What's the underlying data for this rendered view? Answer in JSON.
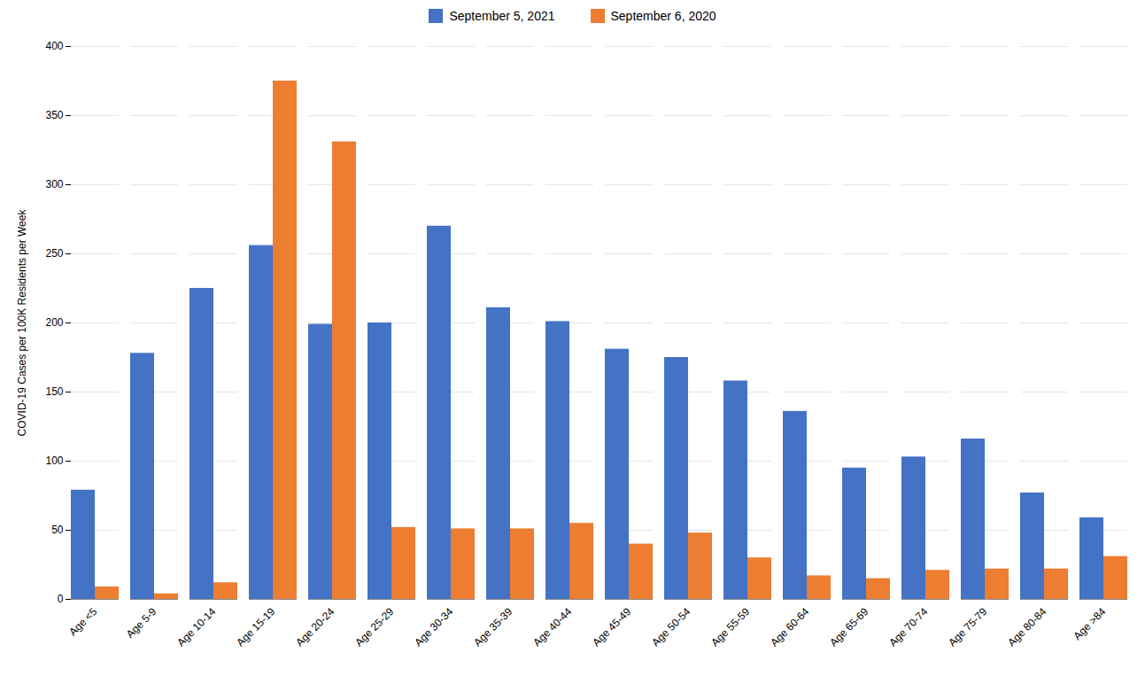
{
  "chart_data": {
    "type": "bar",
    "categories": [
      "Age <5",
      "Age 5-9",
      "Age 10-14",
      "Age 15-19",
      "Age 20-24",
      "Age 25-29",
      "Age 30-34",
      "Age 35-39",
      "Age 40-44",
      "Age 45-49",
      "Age 50-54",
      "Age 55-59",
      "Age 60-64",
      "Age 65-69",
      "Age 70-74",
      "Age 75-79",
      "Age 80-84",
      "Age >84"
    ],
    "series": [
      {
        "name": "September 5,  2021",
        "color": "#4472C4",
        "values": [
          79,
          178,
          225,
          256,
          199,
          200,
          270,
          211,
          201,
          181,
          175,
          158,
          136,
          95,
          103,
          116,
          77,
          59
        ]
      },
      {
        "name": "September 6,  2020",
        "color": "#ED7D31",
        "values": [
          9,
          4,
          12,
          375,
          331,
          52,
          51,
          51,
          55,
          40,
          48,
          30,
          17,
          15,
          21,
          22,
          22,
          31
        ]
      }
    ],
    "ylabel": "COVID-19 Cases per 100K Residents per Week",
    "ylim": [
      0,
      400
    ],
    "yticks": [
      0,
      50,
      100,
      150,
      200,
      250,
      300,
      350,
      400
    ],
    "grid": true,
    "legend": "top"
  }
}
